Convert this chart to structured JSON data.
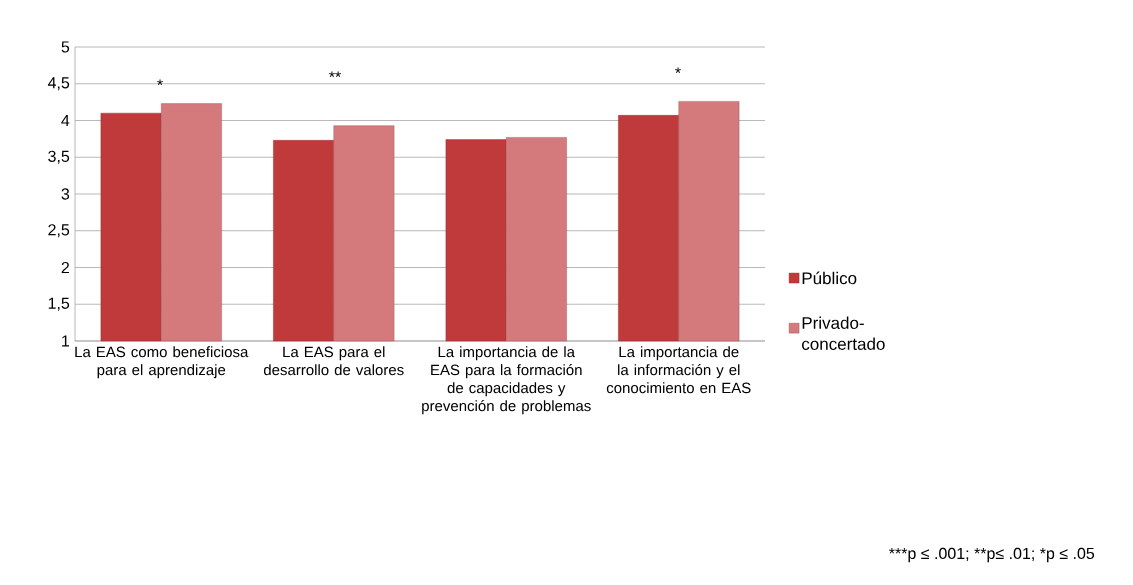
{
  "chart_data": {
    "type": "bar",
    "categories": [
      "La EAS como beneficiosa para el aprendizaje",
      "La EAS para el desarrollo de valores",
      "La importancia de la EAS para la formación de capacidades y prevención de problemas",
      "La importancia de la información y el conocimiento en EAS"
    ],
    "series": [
      {
        "name": "Público",
        "color": "#c0393b",
        "values": [
          4.1,
          3.73,
          3.74,
          4.07
        ]
      },
      {
        "name": "Privado-concertado",
        "color": "#d4797c",
        "values": [
          4.23,
          3.93,
          3.77,
          4.26
        ]
      }
    ],
    "ylim": [
      1,
      5
    ],
    "yticks": [
      1,
      {
        "value": 1.5,
        "label": "1,5"
      },
      2,
      {
        "value": 2.5,
        "label": "2,5"
      },
      3,
      {
        "value": 3.5,
        "label": "3,5"
      },
      4,
      {
        "value": 4.5,
        "label": "4,5"
      },
      5
    ],
    "grid": "y",
    "legend": "right",
    "annotations": [
      "*",
      "**",
      "*",
      "***p ≤ .001; **p≤ .01; *p ≤ .05"
    ]
  }
}
